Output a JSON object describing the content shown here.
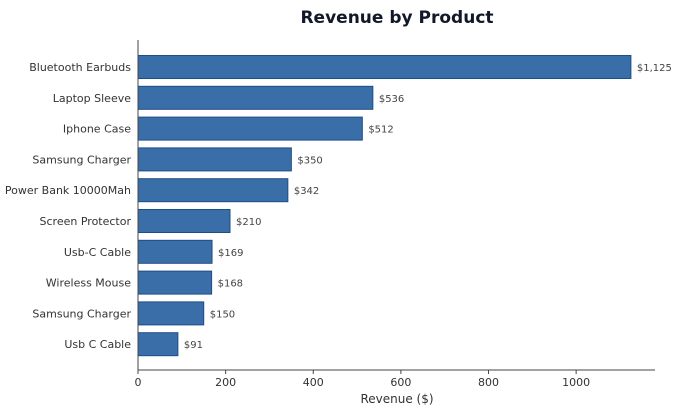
{
  "chart_data": {
    "type": "bar",
    "orientation": "horizontal",
    "title": "Revenue by Product",
    "xlabel": "Revenue ($)",
    "ylabel": "",
    "categories": [
      "Bluetooth Earbuds",
      "Laptop Sleeve",
      "Iphone Case",
      "Samsung Charger",
      "Power Bank 10000Mah",
      "Screen Protector",
      "Usb-C Cable",
      "Wireless Mouse",
      "Samsung  Charger",
      "Usb C Cable"
    ],
    "values": [
      1125,
      536,
      512,
      350,
      342,
      210,
      169,
      168,
      150,
      91
    ],
    "value_labels": [
      "$1,125",
      "$536",
      "$512",
      "$350",
      "$342",
      "$210",
      "$169",
      "$168",
      "$150",
      "$91"
    ],
    "xlim": [
      0,
      1180
    ],
    "xticks": [
      0,
      200,
      400,
      600,
      800,
      1000
    ],
    "grid": false,
    "colors": {
      "bar_fill": "#3a6ea8",
      "bar_edge": "#1f4e85",
      "axis": "#444444"
    }
  }
}
